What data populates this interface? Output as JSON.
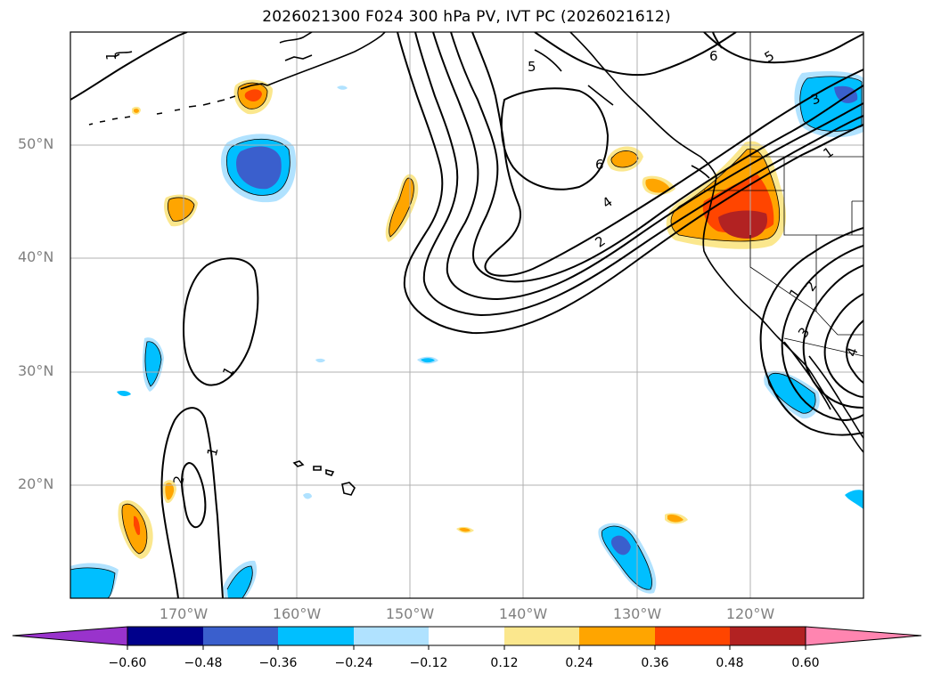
{
  "title": "2026021300 F024 300 hPa PV, IVT PC (2026021612)",
  "map": {
    "projection": "PlateCarree",
    "lon_range": [
      -180,
      -110
    ],
    "lat_range": [
      10,
      60
    ],
    "lat_labels": [
      "50°N",
      "40°N",
      "30°N",
      "20°N"
    ],
    "lon_labels": [
      "170°W",
      "160°W",
      "150°W",
      "140°W",
      "130°W",
      "120°W"
    ]
  },
  "colorbar": {
    "ticks": [
      "−0.60",
      "−0.48",
      "−0.36",
      "−0.24",
      "−0.12",
      "0.12",
      "0.24",
      "0.36",
      "0.48",
      "0.60"
    ],
    "levels": [
      -0.6,
      -0.48,
      -0.36,
      -0.24,
      -0.12,
      0.12,
      0.24,
      0.36,
      0.48,
      0.6
    ],
    "colors": [
      "#9933cc",
      "#00008b",
      "#3a5fcd",
      "#00bfff",
      "#b0e2ff",
      "#ffffff",
      "#fbe78d",
      "#ffa500",
      "#ff4500",
      "#b22222",
      "#ff85b0"
    ]
  },
  "contour_labels": [
    "1",
    "5",
    "6",
    "5",
    "3",
    "6",
    "4",
    "2",
    "1",
    "1",
    "2",
    "1",
    "2",
    "3",
    "4",
    "1"
  ]
}
